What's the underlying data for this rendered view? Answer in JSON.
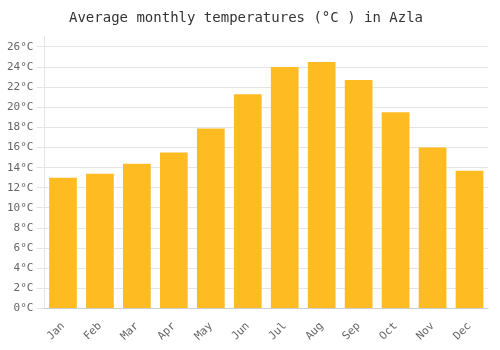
{
  "chart_data": {
    "type": "bar",
    "title": "Average monthly temperatures (°C ) in Azla",
    "categories": [
      "Jan",
      "Feb",
      "Mar",
      "Apr",
      "May",
      "Jun",
      "Jul",
      "Aug",
      "Sep",
      "Oct",
      "Nov",
      "Dec"
    ],
    "values": [
      13.0,
      13.4,
      14.4,
      15.5,
      17.9,
      21.3,
      24.0,
      24.5,
      22.7,
      19.5,
      16.0,
      13.7
    ],
    "color": "#FFBB22",
    "ylim": [
      0,
      27
    ],
    "yticks": [
      {
        "value": 0,
        "label": "0°C"
      },
      {
        "value": 2,
        "label": "2°C"
      },
      {
        "value": 4,
        "label": "4°C"
      },
      {
        "value": 6,
        "label": "6°C"
      },
      {
        "value": 8,
        "label": "8°C"
      },
      {
        "value": 10,
        "label": "10°C"
      },
      {
        "value": 12,
        "label": "12°C"
      },
      {
        "value": 14,
        "label": "14°C"
      },
      {
        "value": 16,
        "label": "16°C"
      },
      {
        "value": 18,
        "label": "18°C"
      },
      {
        "value": 20,
        "label": "20°C"
      },
      {
        "value": 22,
        "label": "22°C"
      },
      {
        "value": 24,
        "label": "24°C"
      },
      {
        "value": 26,
        "label": "26°C"
      }
    ],
    "grid": true
  }
}
